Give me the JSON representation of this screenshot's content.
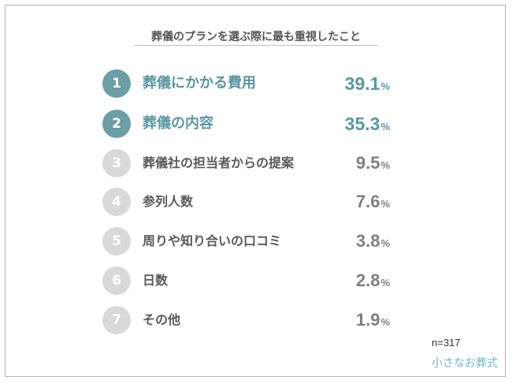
{
  "chart_data": {
    "type": "table",
    "title": "葬儀のプランを選ぶ際に最も重視したこと",
    "unit": "%",
    "ranks": [
      "1",
      "2",
      "3",
      "4",
      "5",
      "6",
      "7"
    ],
    "categories": [
      "葬儀にかかる費用",
      "葬儀の内容",
      "葬儀社の担当者からの提案",
      "参列人数",
      "周りや知り合いの口コミ",
      "日数",
      "その他"
    ],
    "values": [
      39.1,
      35.3,
      9.5,
      7.6,
      3.8,
      2.8,
      1.9
    ],
    "value_labels": [
      "39.1",
      "35.3",
      "9.5",
      "7.6",
      "3.8",
      "2.8",
      "1.9"
    ],
    "sample_size": "n=317"
  },
  "brand": {
    "logo_text": "小さなお葬式"
  },
  "colors": {
    "highlight": "#5a97a1",
    "highlight_badge": "#6b9ea7",
    "muted_badge": "#d9d9d9",
    "muted_text": "#595959",
    "muted_value": "#7f7f7f"
  }
}
